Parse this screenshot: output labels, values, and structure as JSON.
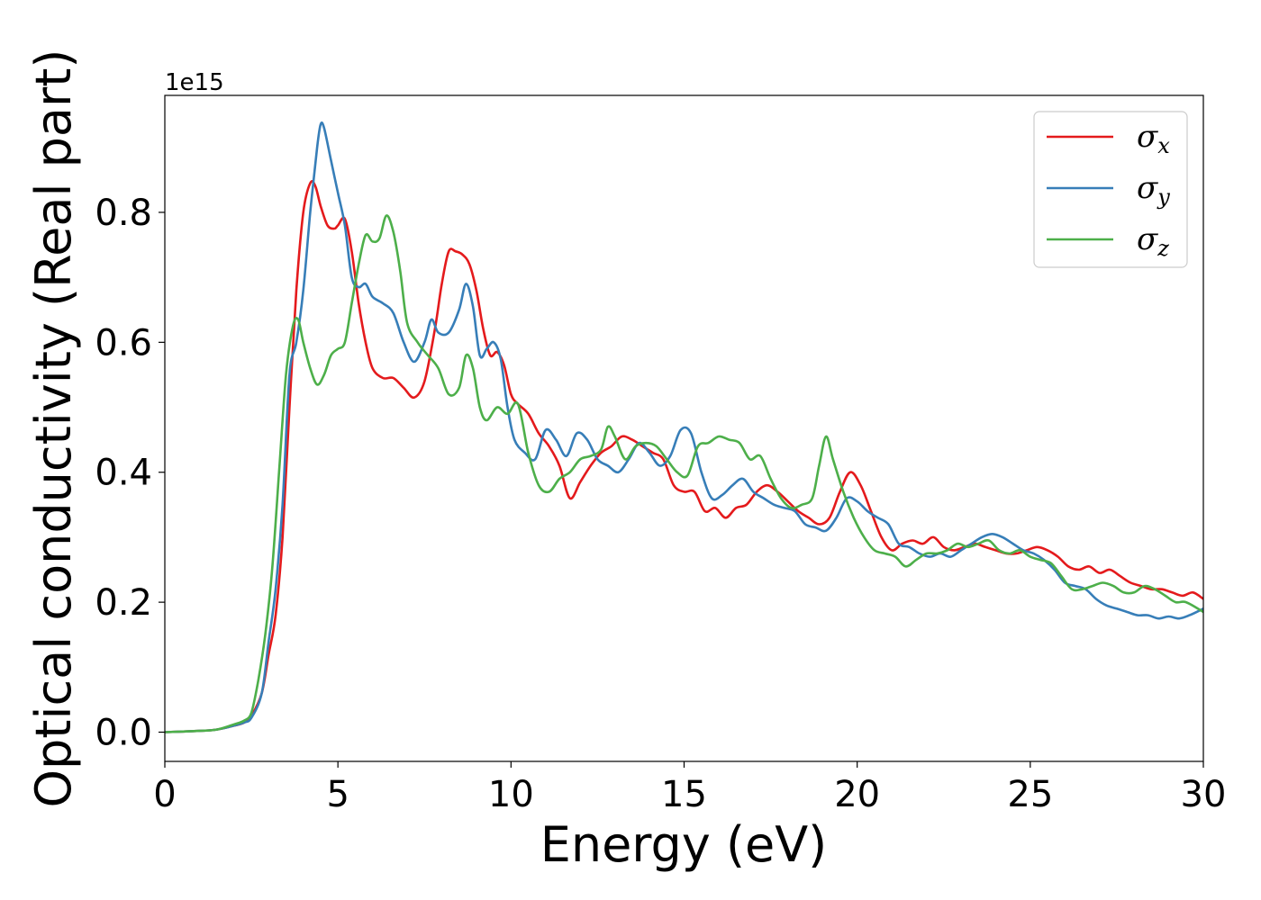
{
  "chart_data": {
    "type": "line",
    "xlabel": "Energy (eV)",
    "ylabel": "Optical conductivity (Real part)",
    "y_offset_label": "1e15",
    "xlim": [
      0,
      30
    ],
    "ylim": [
      -0.045,
      0.98
    ],
    "xticks": [
      0,
      5,
      10,
      15,
      20,
      25,
      30
    ],
    "xtick_labels": [
      "0",
      "5",
      "10",
      "15",
      "20",
      "25",
      "30"
    ],
    "yticks": [
      0.0,
      0.2,
      0.4,
      0.6,
      0.8
    ],
    "ytick_labels": [
      "0.0",
      "0.2",
      "0.4",
      "0.6",
      "0.8"
    ],
    "grid": false,
    "legend_position": "top-right",
    "series": [
      {
        "name": "σ",
        "subscript": "x",
        "color": "#e41a1c",
        "x": [
          0,
          1,
          1.5,
          2,
          2.3,
          2.5,
          2.8,
          3.0,
          3.2,
          3.4,
          3.6,
          3.8,
          4.0,
          4.2,
          4.35,
          4.5,
          4.7,
          4.9,
          5.0,
          5.2,
          5.4,
          5.6,
          5.8,
          6.0,
          6.3,
          6.6,
          6.9,
          7.2,
          7.5,
          7.8,
          8.0,
          8.2,
          8.4,
          8.6,
          8.8,
          9.0,
          9.2,
          9.4,
          9.6,
          9.8,
          10.0,
          10.2,
          10.5,
          10.8,
          11.1,
          11.4,
          11.7,
          12.0,
          12.3,
          12.6,
          12.9,
          13.2,
          13.5,
          13.8,
          14.1,
          14.4,
          14.7,
          15.0,
          15.3,
          15.6,
          15.9,
          16.2,
          16.5,
          16.8,
          17.1,
          17.4,
          17.7,
          18.0,
          18.3,
          18.6,
          18.9,
          19.2,
          19.5,
          19.8,
          20.1,
          20.4,
          20.7,
          21.0,
          21.3,
          21.6,
          21.9,
          22.2,
          22.5,
          22.8,
          23.1,
          23.4,
          23.7,
          24.0,
          24.3,
          24.6,
          24.9,
          25.2,
          25.5,
          25.8,
          26.1,
          26.4,
          26.7,
          27.0,
          27.3,
          27.6,
          27.9,
          28.2,
          28.5,
          28.8,
          29.1,
          29.4,
          29.7,
          30.0
        ],
        "y": [
          0.0,
          0.002,
          0.004,
          0.01,
          0.015,
          0.025,
          0.06,
          0.12,
          0.18,
          0.3,
          0.5,
          0.68,
          0.8,
          0.845,
          0.84,
          0.81,
          0.78,
          0.775,
          0.78,
          0.79,
          0.74,
          0.66,
          0.6,
          0.56,
          0.545,
          0.545,
          0.53,
          0.515,
          0.54,
          0.62,
          0.69,
          0.74,
          0.74,
          0.735,
          0.72,
          0.68,
          0.62,
          0.58,
          0.585,
          0.565,
          0.52,
          0.505,
          0.49,
          0.46,
          0.44,
          0.41,
          0.36,
          0.385,
          0.41,
          0.43,
          0.44,
          0.455,
          0.45,
          0.44,
          0.43,
          0.42,
          0.38,
          0.37,
          0.37,
          0.34,
          0.345,
          0.33,
          0.345,
          0.35,
          0.37,
          0.38,
          0.37,
          0.355,
          0.34,
          0.33,
          0.32,
          0.33,
          0.37,
          0.4,
          0.38,
          0.34,
          0.3,
          0.28,
          0.29,
          0.295,
          0.29,
          0.3,
          0.285,
          0.28,
          0.285,
          0.29,
          0.285,
          0.28,
          0.275,
          0.275,
          0.28,
          0.285,
          0.28,
          0.27,
          0.255,
          0.25,
          0.255,
          0.245,
          0.25,
          0.24,
          0.23,
          0.225,
          0.22,
          0.22,
          0.215,
          0.21,
          0.215,
          0.205
        ]
      },
      {
        "name": "σ",
        "subscript": "y",
        "color": "#377eb8",
        "x": [
          0,
          1,
          1.5,
          2,
          2.3,
          2.5,
          2.8,
          3.0,
          3.2,
          3.4,
          3.6,
          3.8,
          4.0,
          4.2,
          4.4,
          4.5,
          4.6,
          4.8,
          5.0,
          5.2,
          5.4,
          5.6,
          5.8,
          6.0,
          6.3,
          6.6,
          6.9,
          7.2,
          7.5,
          7.7,
          7.9,
          8.2,
          8.5,
          8.7,
          8.9,
          9.1,
          9.3,
          9.5,
          9.7,
          9.9,
          10.1,
          10.4,
          10.7,
          11.0,
          11.3,
          11.6,
          11.9,
          12.2,
          12.5,
          12.8,
          13.1,
          13.4,
          13.7,
          14.0,
          14.3,
          14.6,
          14.9,
          15.2,
          15.5,
          15.8,
          16.1,
          16.4,
          16.7,
          17.0,
          17.3,
          17.6,
          17.9,
          18.2,
          18.5,
          18.8,
          19.1,
          19.4,
          19.7,
          20.0,
          20.3,
          20.6,
          20.9,
          21.2,
          21.5,
          21.8,
          22.1,
          22.4,
          22.7,
          23.0,
          23.3,
          23.6,
          23.9,
          24.2,
          24.5,
          24.8,
          25.1,
          25.4,
          25.7,
          26.0,
          26.3,
          26.6,
          26.9,
          27.2,
          27.5,
          27.8,
          28.1,
          28.4,
          28.7,
          29.0,
          29.3,
          29.6,
          30.0
        ],
        "y": [
          0.0,
          0.002,
          0.004,
          0.01,
          0.015,
          0.022,
          0.06,
          0.14,
          0.22,
          0.35,
          0.55,
          0.6,
          0.68,
          0.8,
          0.9,
          0.935,
          0.93,
          0.88,
          0.83,
          0.78,
          0.7,
          0.685,
          0.69,
          0.67,
          0.66,
          0.645,
          0.6,
          0.57,
          0.6,
          0.635,
          0.615,
          0.615,
          0.65,
          0.69,
          0.655,
          0.58,
          0.59,
          0.6,
          0.575,
          0.5,
          0.45,
          0.43,
          0.42,
          0.465,
          0.45,
          0.425,
          0.46,
          0.45,
          0.42,
          0.41,
          0.4,
          0.42,
          0.445,
          0.43,
          0.41,
          0.425,
          0.465,
          0.46,
          0.4,
          0.36,
          0.365,
          0.38,
          0.39,
          0.37,
          0.36,
          0.35,
          0.345,
          0.34,
          0.32,
          0.315,
          0.31,
          0.33,
          0.36,
          0.355,
          0.34,
          0.33,
          0.32,
          0.29,
          0.285,
          0.275,
          0.27,
          0.275,
          0.27,
          0.28,
          0.29,
          0.3,
          0.305,
          0.3,
          0.29,
          0.28,
          0.275,
          0.265,
          0.25,
          0.23,
          0.225,
          0.22,
          0.205,
          0.195,
          0.19,
          0.185,
          0.18,
          0.18,
          0.175,
          0.178,
          0.175,
          0.18,
          0.19
        ]
      },
      {
        "name": "σ",
        "subscript": "z",
        "color": "#4daf4a",
        "x": [
          0,
          1,
          1.5,
          2,
          2.3,
          2.5,
          2.7,
          2.9,
          3.1,
          3.3,
          3.5,
          3.7,
          3.85,
          4.0,
          4.2,
          4.4,
          4.6,
          4.8,
          5.0,
          5.2,
          5.4,
          5.6,
          5.8,
          6.0,
          6.2,
          6.4,
          6.6,
          6.8,
          7.0,
          7.3,
          7.6,
          7.9,
          8.2,
          8.5,
          8.7,
          8.9,
          9.1,
          9.3,
          9.6,
          9.9,
          10.2,
          10.5,
          10.8,
          11.1,
          11.4,
          11.7,
          12.0,
          12.3,
          12.6,
          12.8,
          13.0,
          13.3,
          13.6,
          13.9,
          14.2,
          14.5,
          14.8,
          15.1,
          15.4,
          15.7,
          16.0,
          16.3,
          16.6,
          16.9,
          17.2,
          17.5,
          17.8,
          18.1,
          18.4,
          18.7,
          18.9,
          19.1,
          19.3,
          19.6,
          19.9,
          20.2,
          20.5,
          20.8,
          21.1,
          21.4,
          21.7,
          22.0,
          22.3,
          22.6,
          22.9,
          23.2,
          23.5,
          23.8,
          24.1,
          24.4,
          24.7,
          25.0,
          25.3,
          25.6,
          25.9,
          26.2,
          26.5,
          26.8,
          27.1,
          27.4,
          27.7,
          28.0,
          28.3,
          28.6,
          28.9,
          29.2,
          29.5,
          30.0
        ],
        "y": [
          0.0,
          0.002,
          0.004,
          0.012,
          0.018,
          0.03,
          0.08,
          0.15,
          0.25,
          0.4,
          0.55,
          0.625,
          0.635,
          0.6,
          0.56,
          0.535,
          0.55,
          0.58,
          0.59,
          0.6,
          0.66,
          0.72,
          0.765,
          0.755,
          0.76,
          0.795,
          0.77,
          0.71,
          0.63,
          0.6,
          0.58,
          0.56,
          0.52,
          0.53,
          0.58,
          0.56,
          0.5,
          0.48,
          0.5,
          0.49,
          0.505,
          0.43,
          0.38,
          0.37,
          0.39,
          0.4,
          0.42,
          0.425,
          0.435,
          0.47,
          0.455,
          0.42,
          0.44,
          0.445,
          0.44,
          0.42,
          0.4,
          0.395,
          0.44,
          0.445,
          0.455,
          0.45,
          0.445,
          0.42,
          0.425,
          0.39,
          0.36,
          0.345,
          0.35,
          0.36,
          0.41,
          0.455,
          0.42,
          0.37,
          0.33,
          0.3,
          0.28,
          0.275,
          0.27,
          0.255,
          0.265,
          0.275,
          0.275,
          0.28,
          0.29,
          0.285,
          0.29,
          0.295,
          0.28,
          0.275,
          0.28,
          0.27,
          0.265,
          0.26,
          0.24,
          0.22,
          0.22,
          0.225,
          0.23,
          0.225,
          0.215,
          0.215,
          0.225,
          0.22,
          0.21,
          0.2,
          0.2,
          0.185
        ]
      }
    ]
  }
}
